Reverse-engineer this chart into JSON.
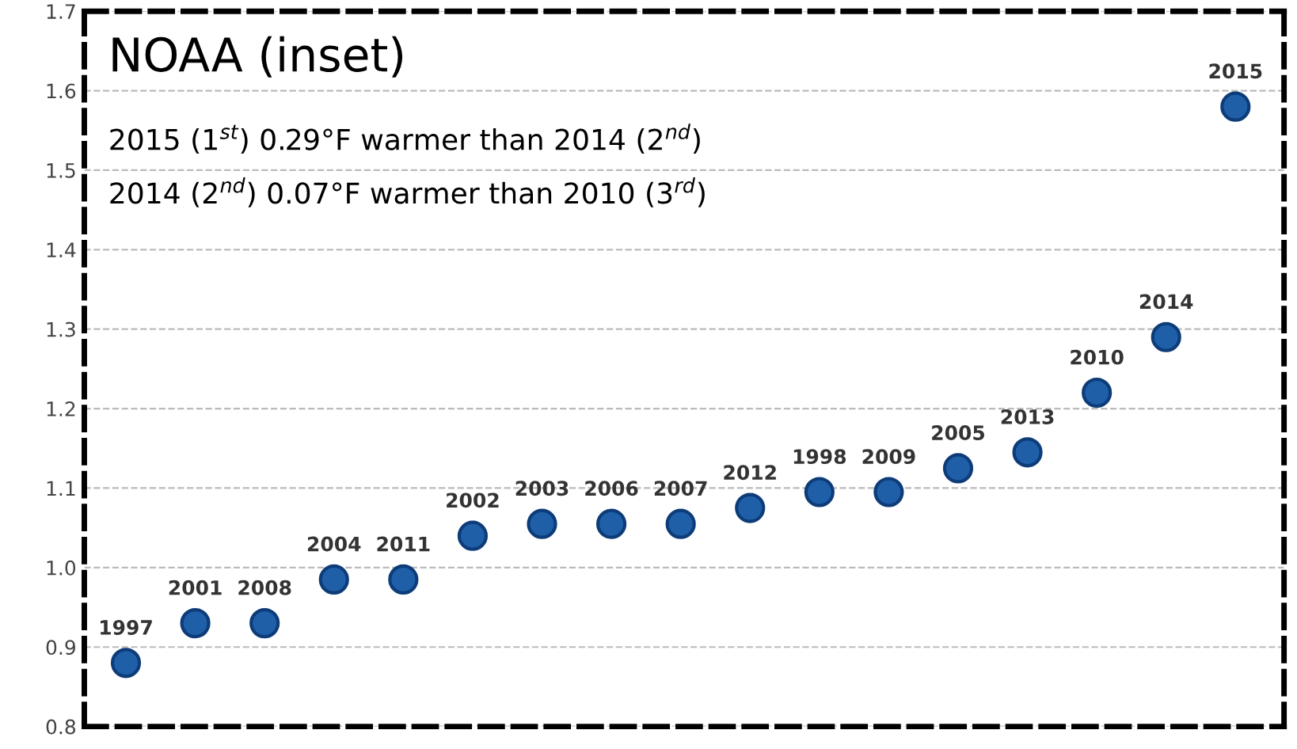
{
  "chart_data": {
    "type": "scatter",
    "title": "NOAA (inset)",
    "annotations": [
      "2015 (1$^{st}$) 0.29°F warmer than 2014 (2$^{nd}$)",
      "2014 (2$^{nd}$) 0.07°F warmer than 2010 (3$^{rd}$)"
    ],
    "categories": [
      "1997",
      "2001",
      "2008",
      "2004",
      "2011",
      "2002",
      "2003",
      "2006",
      "2007",
      "2012",
      "1998",
      "2009",
      "2005",
      "2013",
      "2010",
      "2014",
      "2015"
    ],
    "series": [
      {
        "color": "#1f5fa8",
        "values": [
          0.88,
          0.93,
          0.93,
          0.985,
          0.985,
          1.04,
          1.055,
          1.055,
          1.055,
          1.075,
          1.095,
          1.095,
          1.125,
          1.145,
          1.22,
          1.29,
          1.58
        ]
      }
    ],
    "ylim": [
      0.8,
      1.7
    ],
    "yticks": [
      0.8,
      0.9,
      {
        "value": 1.0,
        "label": "1.0"
      },
      1.1,
      1.2,
      1.3,
      1.4,
      1.5,
      1.6,
      1.7
    ],
    "grid": "y",
    "marker": "circle"
  }
}
